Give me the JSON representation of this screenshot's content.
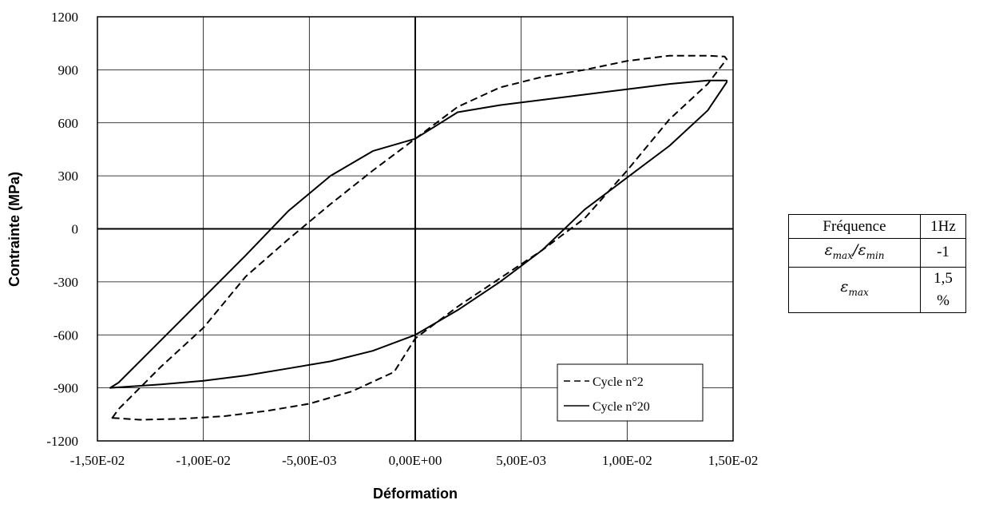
{
  "chart_data": {
    "type": "line",
    "title": "",
    "xlabel": "Déformation",
    "ylabel": "Contrainte (MPa)",
    "xlim": [
      -0.015,
      0.015
    ],
    "ylim": [
      -1200,
      1200
    ],
    "xticks": [
      -0.015,
      -0.01,
      -0.005,
      0.0,
      0.005,
      0.01,
      0.015
    ],
    "xtick_labels": [
      "-1,50E-02",
      "-1,00E-02",
      "-5,00E-03",
      "0,00E+00",
      "5,00E-03",
      "1,00E-02",
      "1,50E-02"
    ],
    "yticks": [
      -1200,
      -900,
      -600,
      -300,
      0,
      300,
      600,
      900,
      1200
    ],
    "ytick_labels": [
      "-1200",
      "-900",
      "-600",
      "-300",
      "0",
      "300",
      "600",
      "900",
      "1200"
    ],
    "grid": true,
    "legend_position": "bottom-right",
    "series": [
      {
        "name": "Cycle n°2",
        "style": "dashed",
        "color": "#000000",
        "x": [
          -0.0143,
          -0.013,
          -0.011,
          -0.009,
          -0.007,
          -0.005,
          -0.003,
          -0.001,
          0.0,
          0.002,
          0.004,
          0.006,
          0.008,
          0.01,
          0.012,
          0.0138,
          0.0147,
          0.0146,
          0.0138,
          0.012,
          0.01,
          0.008,
          0.006,
          0.004,
          0.002,
          0.0,
          -0.002,
          -0.004,
          -0.006,
          -0.008,
          -0.01,
          -0.012,
          -0.013,
          -0.014,
          -0.0143
        ],
        "y": [
          -1070,
          -1080,
          -1075,
          -1060,
          -1030,
          -990,
          -920,
          -810,
          -620,
          -440,
          -280,
          -120,
          60,
          330,
          620,
          820,
          960,
          975,
          980,
          980,
          950,
          900,
          860,
          800,
          690,
          510,
          330,
          140,
          -60,
          -270,
          -560,
          -780,
          -900,
          -1020,
          -1070
        ]
      },
      {
        "name": "Cycle n°20",
        "style": "solid",
        "color": "#000000",
        "x": [
          -0.0144,
          -0.012,
          -0.01,
          -0.008,
          -0.006,
          -0.004,
          -0.002,
          0.0,
          0.002,
          0.004,
          0.006,
          0.008,
          0.01,
          0.012,
          0.0138,
          0.0147,
          0.0147,
          0.0138,
          0.012,
          0.01,
          0.008,
          0.006,
          0.004,
          0.002,
          0.0,
          -0.002,
          -0.004,
          -0.006,
          -0.008,
          -0.01,
          -0.012,
          -0.014,
          -0.0144
        ],
        "y": [
          -900,
          -880,
          -860,
          -830,
          -790,
          -750,
          -690,
          -600,
          -460,
          -300,
          -120,
          110,
          290,
          470,
          670,
          830,
          840,
          840,
          820,
          790,
          760,
          730,
          700,
          660,
          510,
          440,
          300,
          100,
          -150,
          -390,
          -630,
          -870,
          -900
        ]
      }
    ]
  },
  "param_table": {
    "rows": [
      {
        "name": "Fréquence",
        "value": "1Hz"
      },
      {
        "name_symbol": "ε",
        "name_sub1": "max",
        "name_sub2": "min",
        "value": "-1"
      },
      {
        "name_symbol": "ε",
        "name_sub1": "max",
        "value": "1,5 %"
      }
    ]
  }
}
